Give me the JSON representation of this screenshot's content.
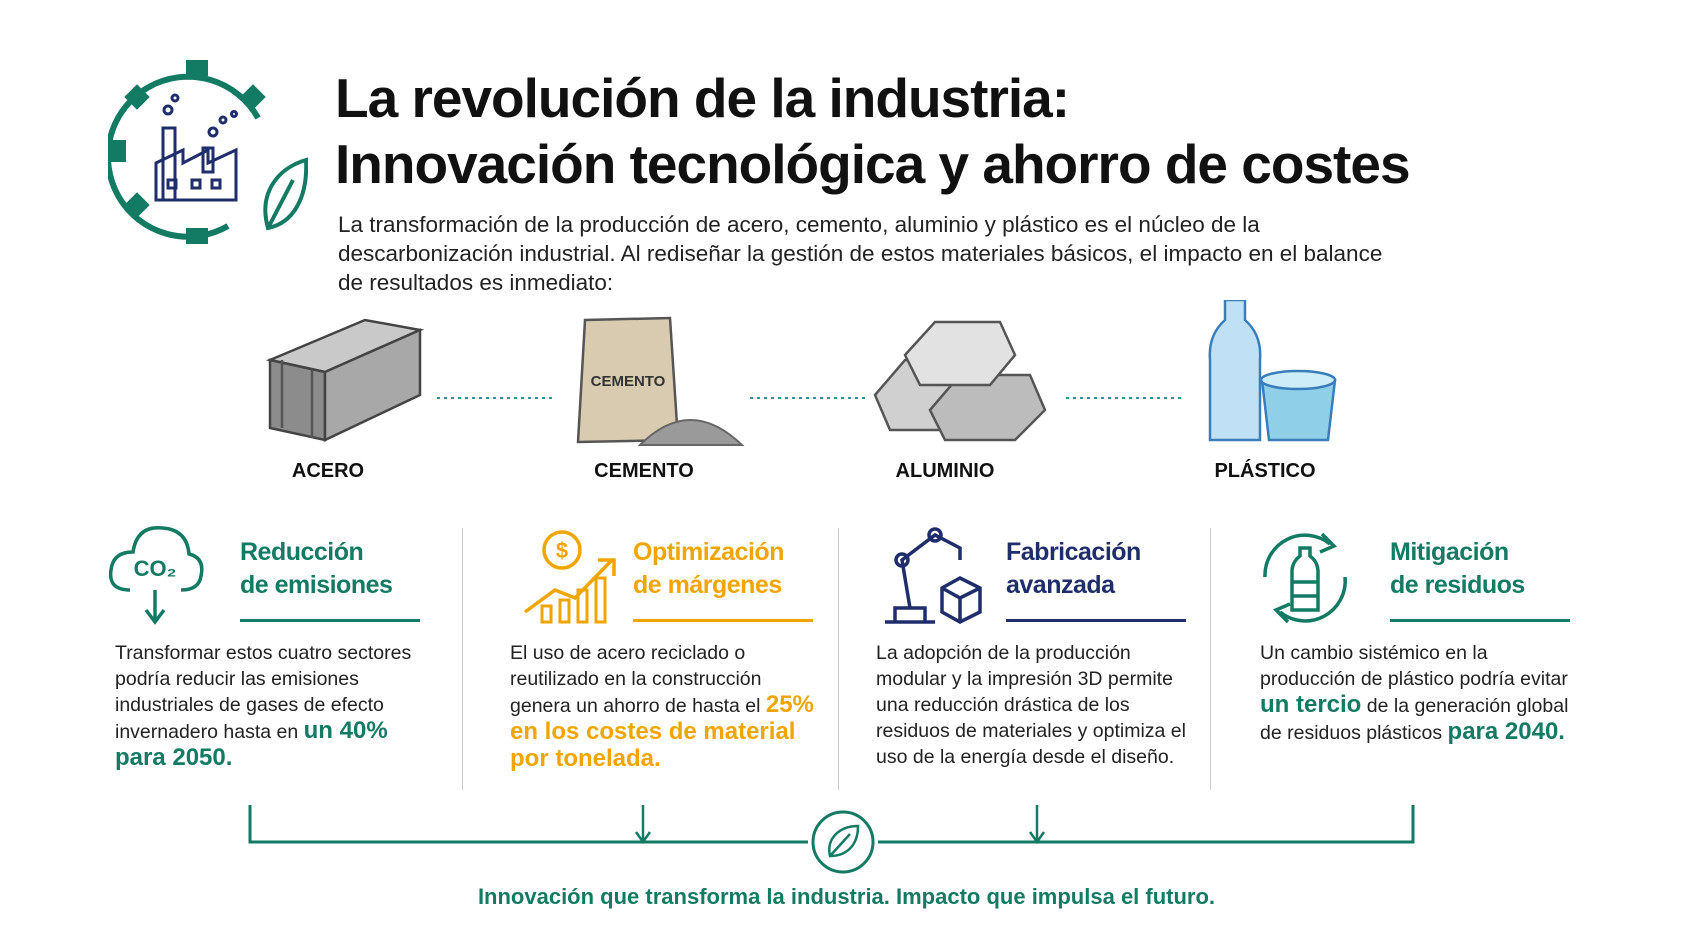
{
  "header": {
    "title": [
      "La revolución de la industria:",
      "Innovación tecnológica y ahorro de costes"
    ],
    "intro": "La transformación de la producción de acero, cemento, aluminio y plástico es el núcleo de la descarbonización industrial. Al rediseñar la gestión de estos materiales básicos, el impacto en el balance de resultados es inmediato:"
  },
  "materials": [
    {
      "label": "ACERO"
    },
    {
      "label": "CEMENTO",
      "icon_text": "CEMENTO"
    },
    {
      "label": "ALUMINIO"
    },
    {
      "label": "PLÁSTICO"
    }
  ],
  "cards": [
    {
      "title": [
        "Reducción",
        "de emisiones"
      ],
      "color": "#137a63",
      "icon_text": "CO₂",
      "body": [
        {
          "text": "Transformar estos cuatro sectores podría reducir las emisiones industriales de gases de efecto invernadero hasta en",
          "strong": false
        },
        {
          "text": "un 40% para 2050.",
          "strong": true
        }
      ]
    },
    {
      "title": [
        "Optimización",
        "de márgenes"
      ],
      "color": "#f0a500",
      "icon_text": "$",
      "body": [
        {
          "text": "El uso de acero reciclado o reutilizado en la construcción genera un ahorro de hasta el",
          "strong": false
        },
        {
          "text": "25% en los costes de material por tonelada.",
          "strong": true
        }
      ]
    },
    {
      "title": [
        "Fabricación",
        "avanzada"
      ],
      "color": "#1f2d6b",
      "body": [
        {
          "text": "La adopción de la producción modular y la impresión 3D permite una reducción drástica de los residuos de materiales y optimiza el uso de la energía desde el diseño.",
          "strong": false
        }
      ]
    },
    {
      "title": [
        "Mitigación",
        "de residuos"
      ],
      "color": "#137a63",
      "body": [
        {
          "text": "Un cambio sistémico en la producción de plástico podría evitar",
          "strong": false
        },
        {
          "text": "un tercio",
          "strong": true
        },
        {
          "text": "de la generación global de residuos plásticos",
          "strong": false
        },
        {
          "text": "para 2040.",
          "strong": true
        }
      ]
    }
  ],
  "footer": "Innovación que transforma la industria. Impacto que impulsa el futuro."
}
